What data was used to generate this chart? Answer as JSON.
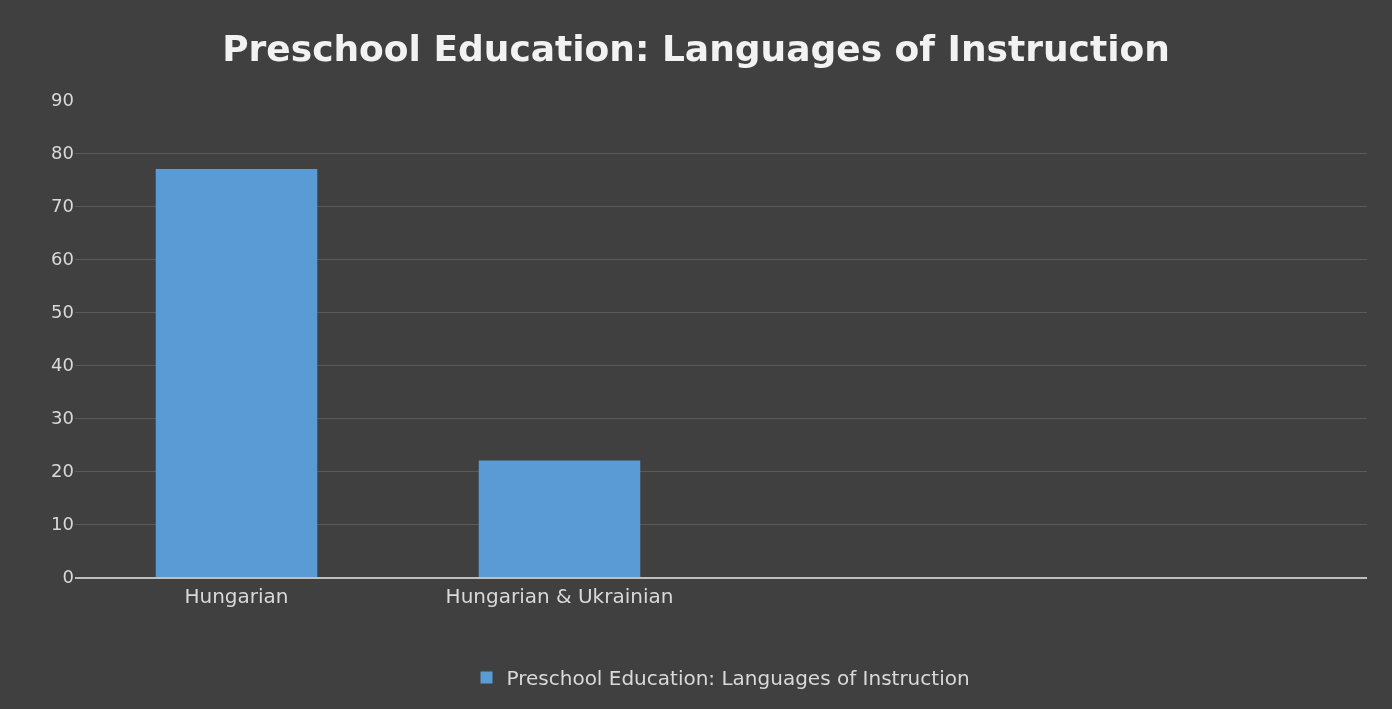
{
  "chart_data": {
    "type": "bar",
    "title": "Preschool Education: Languages of Instruction",
    "categories": [
      "Hungarian",
      "Hungarian & Ukrainian",
      null,
      null
    ],
    "series": [
      {
        "name": "Preschool Education: Languages of Instruction",
        "color": "#5b9bd5",
        "values": [
          77,
          22,
          null,
          null
        ]
      }
    ],
    "ylim": [
      0,
      90
    ],
    "yticks": [
      0,
      10,
      20,
      30,
      40,
      50,
      60,
      70,
      80,
      90
    ],
    "grid": "y",
    "legend": "bottom"
  }
}
